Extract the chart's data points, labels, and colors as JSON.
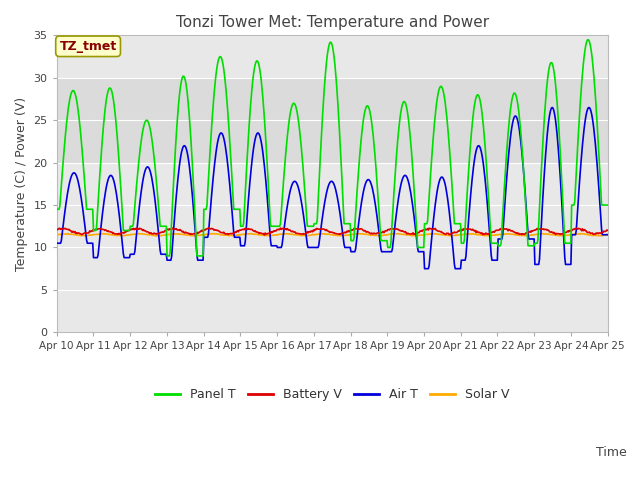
{
  "title": "Tonzi Tower Met: Temperature and Power",
  "xlabel": "Time",
  "ylabel": "Temperature (C) / Power (V)",
  "ylim": [
    0,
    35
  ],
  "yticks": [
    0,
    5,
    10,
    15,
    20,
    25,
    30,
    35
  ],
  "x_labels": [
    "Apr 10",
    "Apr 11",
    "Apr 12",
    "Apr 13",
    "Apr 14",
    "Apr 15",
    "Apr 16",
    "Apr 17",
    "Apr 18",
    "Apr 19",
    "Apr 20",
    "Apr 21",
    "Apr 22",
    "Apr 23",
    "Apr 24",
    "Apr 25"
  ],
  "fig_bg": "#ffffff",
  "plot_bg": "#e8e8e8",
  "grid_color": "#ffffff",
  "legend_label": "TZ_tmet",
  "legend_box_facecolor": "#ffffcc",
  "legend_box_edgecolor": "#999900",
  "legend_text_color": "#880000",
  "panel_color": "#00dd00",
  "battery_color": "#dd0000",
  "air_color": "#0000dd",
  "solar_color": "#ffaa00",
  "linewidth": 1.2,
  "panel_peaks": [
    28.5,
    28.8,
    25.0,
    30.2,
    32.5,
    32.0,
    27.0,
    34.2,
    26.7,
    27.2,
    29.0,
    28.0,
    28.2,
    31.8,
    34.5
  ],
  "panel_mins": [
    14.5,
    12.0,
    12.5,
    9.0,
    14.5,
    12.5,
    12.5,
    12.8,
    10.8,
    10.0,
    12.8,
    10.5,
    10.2,
    10.5,
    15.0
  ],
  "air_peaks": [
    18.8,
    18.5,
    19.5,
    22.0,
    23.5,
    23.5,
    17.8,
    17.8,
    18.0,
    18.5,
    18.3,
    22.0,
    25.5,
    26.5,
    26.5
  ],
  "air_mins": [
    10.5,
    8.8,
    9.2,
    8.5,
    11.2,
    10.2,
    10.0,
    10.0,
    9.5,
    9.5,
    7.5,
    8.5,
    11.0,
    8.0,
    11.5
  ],
  "battery_base": 11.9,
  "battery_amp": 0.3,
  "solar_base": 11.5,
  "solar_amp": 0.1,
  "n_days": 15
}
